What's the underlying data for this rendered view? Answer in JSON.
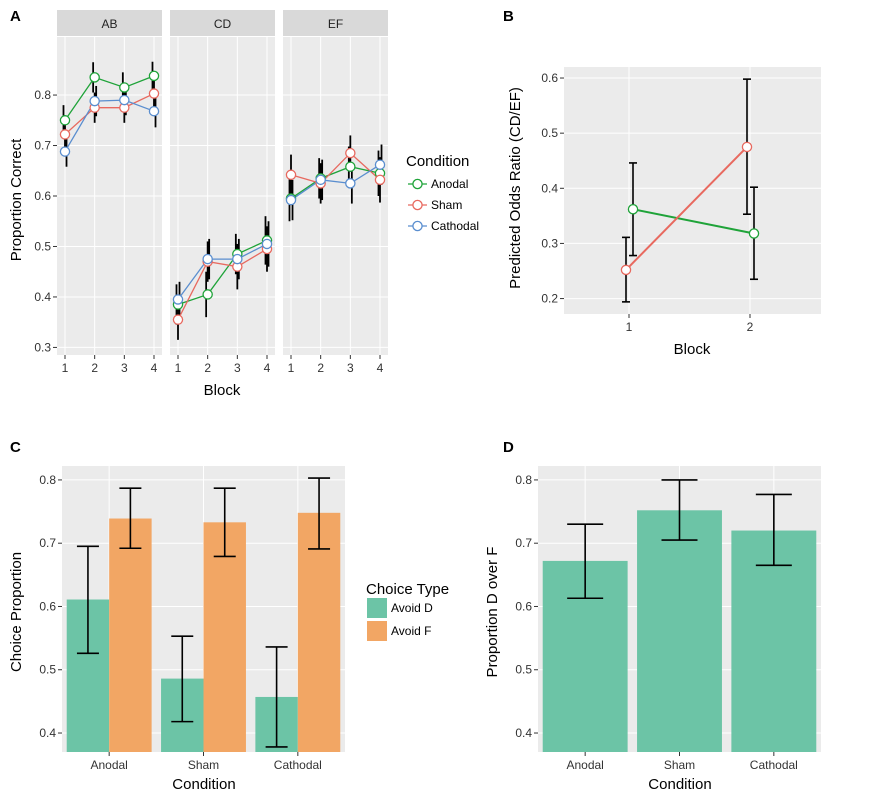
{
  "colors": {
    "anodal": "#1fa339",
    "sham": "#e8695f",
    "cathodal": "#5a8ecf",
    "avoid_d": "#6cc4a6",
    "avoid_f": "#f2a664",
    "panel_bg": "#ebebeb",
    "strip_bg": "#d9d9d9",
    "grid": "#ffffff"
  },
  "chart_data": [
    {
      "panel": "A",
      "type": "line",
      "facets": [
        "AB",
        "CD",
        "EF"
      ],
      "x": [
        1,
        2,
        3,
        4
      ],
      "xticks": [
        "1",
        "2",
        "3",
        "4"
      ],
      "xlabel": "Block",
      "ylabel": "Proportion Correct",
      "ylim": [
        0.285,
        0.915
      ],
      "yticks": [
        0.3,
        0.4,
        0.5,
        0.6,
        0.7,
        0.8
      ],
      "ytick_labels": [
        "0.3",
        "0.4",
        "0.5",
        "0.6",
        "0.7",
        "0.8"
      ],
      "series": [
        {
          "name": "Anodal",
          "key": "anodal",
          "values": [
            [
              0.75,
              0.835,
              0.815,
              0.838
            ],
            [
              0.385,
              0.405,
              0.485,
              0.512
            ],
            [
              0.595,
              0.635,
              0.658,
              0.645
            ]
          ],
          "err": [
            [
              0.03,
              0.03,
              0.03,
              0.028
            ],
            [
              0.04,
              0.045,
              0.04,
              0.048
            ],
            [
              0.045,
              0.04,
              0.04,
              0.045
            ]
          ]
        },
        {
          "name": "Sham",
          "key": "sham",
          "values": [
            [
              0.722,
              0.775,
              0.775,
              0.803
            ],
            [
              0.355,
              0.47,
              0.46,
              0.495
            ],
            [
              0.642,
              0.625,
              0.685,
              0.632
            ]
          ],
          "err": [
            [
              0.03,
              0.03,
              0.03,
              0.03
            ],
            [
              0.04,
              0.04,
              0.045,
              0.045
            ],
            [
              0.04,
              0.04,
              0.035,
              0.045
            ]
          ]
        },
        {
          "name": "Cathodal",
          "key": "cathodal",
          "values": [
            [
              0.688,
              0.788,
              0.79,
              0.768
            ],
            [
              0.395,
              0.475,
              0.475,
              0.505
            ],
            [
              0.592,
              0.632,
              0.625,
              0.662
            ]
          ],
          "err": [
            [
              0.03,
              0.03,
              0.03,
              0.032
            ],
            [
              0.035,
              0.04,
              0.04,
              0.045
            ],
            [
              0.04,
              0.04,
              0.04,
              0.04
            ]
          ]
        }
      ],
      "legend": {
        "title": "Condition",
        "entries": [
          "Anodal",
          "Sham",
          "Cathodal"
        ]
      }
    },
    {
      "panel": "B",
      "type": "line",
      "categories": [
        "1",
        "2"
      ],
      "xlabel": "Block",
      "ylabel": "Predicted Odds Ratio (CD/EF)",
      "ylim": [
        0.172,
        0.62
      ],
      "yticks": [
        0.2,
        0.3,
        0.4,
        0.5,
        0.6
      ],
      "ytick_labels": [
        "0.2",
        "0.3",
        "0.4",
        "0.5",
        "0.6"
      ],
      "series": [
        {
          "name": "Anodal",
          "key": "anodal",
          "values": [
            0.362,
            0.318
          ],
          "lower": [
            0.278,
            0.235
          ],
          "upper": [
            0.446,
            0.402
          ]
        },
        {
          "name": "Sham",
          "key": "sham",
          "values": [
            0.252,
            0.475
          ],
          "lower": [
            0.194,
            0.353
          ],
          "upper": [
            0.311,
            0.598
          ]
        }
      ]
    },
    {
      "panel": "C",
      "type": "bar",
      "categories": [
        "Anodal",
        "Sham",
        "Cathodal"
      ],
      "xlabel": "Condition",
      "ylabel": "Choice Proportion",
      "ylim": [
        0.37,
        0.822
      ],
      "yticks": [
        0.4,
        0.5,
        0.6,
        0.7,
        0.8
      ],
      "ytick_labels": [
        "0.4",
        "0.5",
        "0.6",
        "0.7",
        "0.8"
      ],
      "series": [
        {
          "name": "Avoid D",
          "key": "avoid_d",
          "values": [
            0.611,
            0.486,
            0.457
          ],
          "lower": [
            0.526,
            0.418,
            0.378
          ],
          "upper": [
            0.695,
            0.553,
            0.536
          ]
        },
        {
          "name": "Avoid F",
          "key": "avoid_f",
          "values": [
            0.739,
            0.733,
            0.748
          ],
          "lower": [
            0.692,
            0.679,
            0.691
          ],
          "upper": [
            0.787,
            0.787,
            0.803
          ]
        }
      ],
      "legend": {
        "title": "Choice Type",
        "entries": [
          "Avoid D",
          "Avoid F"
        ]
      }
    },
    {
      "panel": "D",
      "type": "bar",
      "categories": [
        "Anodal",
        "Sham",
        "Cathodal"
      ],
      "xlabel": "Condition",
      "ylabel": "Proportion D over F",
      "ylim": [
        0.37,
        0.822
      ],
      "yticks": [
        0.4,
        0.5,
        0.6,
        0.7,
        0.8
      ],
      "ytick_labels": [
        "0.4",
        "0.5",
        "0.6",
        "0.7",
        "0.8"
      ],
      "series": [
        {
          "name": "Proportion D over F",
          "key": "avoid_d",
          "values": [
            0.672,
            0.752,
            0.72
          ],
          "lower": [
            0.613,
            0.705,
            0.665
          ],
          "upper": [
            0.73,
            0.8,
            0.777
          ]
        }
      ]
    }
  ]
}
